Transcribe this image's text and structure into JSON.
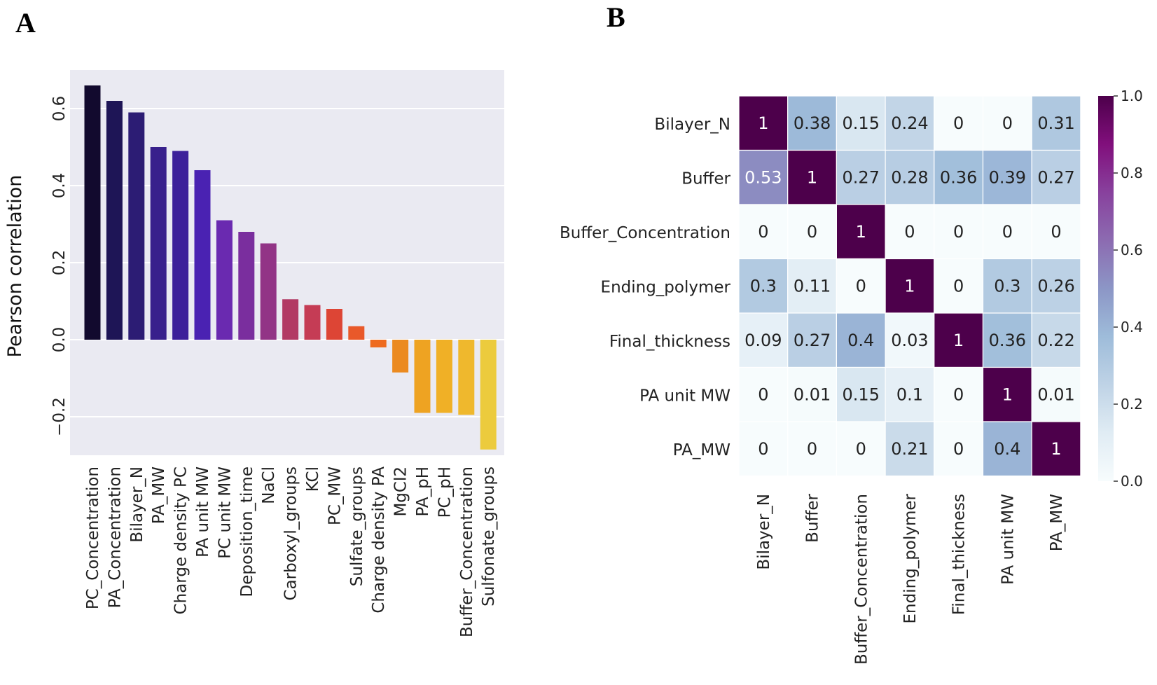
{
  "panel_labels": {
    "a": "A",
    "b": "B"
  },
  "chart_data": [
    {
      "type": "bar",
      "panel": "A",
      "title": "",
      "xlabel": "",
      "ylabel": "Pearson correlation",
      "ylim": [
        -0.3,
        0.7
      ],
      "yticks": [
        -0.2,
        0.0,
        0.2,
        0.4,
        0.6
      ],
      "ytick_labels": [
        "−0.2",
        "0.0",
        "0.2",
        "0.4",
        "0.6"
      ],
      "categories": [
        "PC_Concentration",
        "PA_Concentration",
        "Bilayer_N",
        "PA_MW",
        "Charge density PC",
        "PA unit MW",
        "PC unit MW",
        "Deposition_time",
        "NaCl",
        "Carboxyl_groups",
        "KCl",
        "PC_MW",
        "Sulfate_groups",
        "Charge density PA",
        "MgCl2",
        "PA_pH",
        "PC_pH",
        "Buffer_Concentration",
        "Sulfonate_groups"
      ],
      "values": [
        0.66,
        0.62,
        0.59,
        0.5,
        0.49,
        0.44,
        0.31,
        0.28,
        0.25,
        0.105,
        0.09,
        0.08,
        0.035,
        -0.02,
        -0.085,
        -0.19,
        -0.19,
        -0.195,
        -0.285
      ],
      "colors": [
        "#120a2e",
        "#1e1556",
        "#2c1c74",
        "#38208c",
        "#3c209a",
        "#4a22b2",
        "#6a2ab0",
        "#7a2e9e",
        "#923486",
        "#b23a64",
        "#c53c55",
        "#dd4535",
        "#e9592a",
        "#ee6b20",
        "#eb8a20",
        "#eea322",
        "#f0b026",
        "#efb82d",
        "#eccb3d"
      ],
      "grid": true
    },
    {
      "type": "heatmap",
      "panel": "B",
      "rows": [
        "Bilayer_N",
        "Buffer",
        "Buffer_Concentration",
        "Ending_polymer",
        "Final_thickness",
        "PA unit MW",
        "PA_MW"
      ],
      "columns": [
        "Bilayer_N",
        "Buffer",
        "Buffer_Concentration",
        "Ending_polymer",
        "Final_thickness",
        "PA unit MW",
        "PA_MW"
      ],
      "values": [
        [
          1,
          0.38,
          0.15,
          0.24,
          0,
          0,
          0.31
        ],
        [
          0.53,
          1,
          0.27,
          0.28,
          0.36,
          0.39,
          0.27
        ],
        [
          0,
          0,
          1,
          0,
          0,
          0,
          0
        ],
        [
          0.3,
          0.11,
          0,
          1,
          0,
          0.3,
          0.26
        ],
        [
          0.09,
          0.27,
          0.4,
          0.03,
          1,
          0.36,
          0.22
        ],
        [
          0,
          0.01,
          0.15,
          0.1,
          0,
          1,
          0.01
        ],
        [
          0,
          0,
          0,
          0.21,
          0,
          0.4,
          1
        ]
      ],
      "labels": [
        [
          "1",
          "0.38",
          "0.15",
          "0.24",
          "0",
          "0",
          "0.31"
        ],
        [
          "0.53",
          "1",
          "0.27",
          "0.28",
          "0.36",
          "0.39",
          "0.27"
        ],
        [
          "0",
          "0",
          "1",
          "0",
          "0",
          "0",
          "0"
        ],
        [
          "0.3",
          "0.11",
          "0",
          "1",
          "0",
          "0.3",
          "0.26"
        ],
        [
          "0.09",
          "0.27",
          "0.4",
          "0.03",
          "1",
          "0.36",
          "0.22"
        ],
        [
          "0",
          "0.01",
          "0.15",
          "0.1",
          "0",
          "1",
          "0.01"
        ],
        [
          "0",
          "0",
          "0",
          "0.21",
          "0",
          "0.4",
          "1"
        ]
      ],
      "colorbar": {
        "range": [
          0.0,
          1.0
        ],
        "ticks": [
          0.0,
          0.2,
          0.4,
          0.6,
          0.8,
          1.0
        ],
        "tick_labels": [
          "0.0",
          "0.2",
          "0.4",
          "0.6",
          "0.8",
          "1.0"
        ],
        "colormap": "BuPu"
      }
    }
  ]
}
